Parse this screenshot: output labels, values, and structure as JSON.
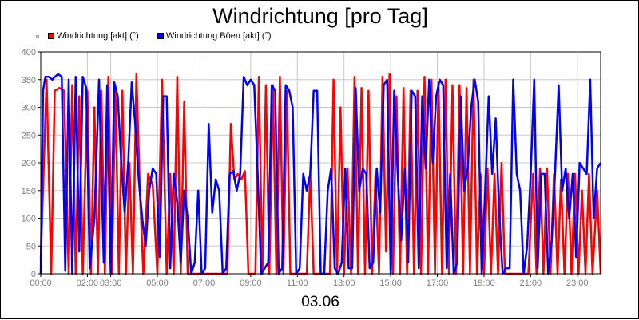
{
  "chart_data": {
    "type": "line",
    "title": "Windrichtung [pro Tag]",
    "xlabel": "03.06",
    "ylabel": "",
    "ylim": [
      0,
      400
    ],
    "yticks": [
      0,
      50,
      100,
      150,
      200,
      250,
      300,
      350,
      400
    ],
    "xlim": [
      0,
      24
    ],
    "xticks": [
      "00:00",
      "02:00",
      "03:00",
      "05:00",
      "07:00",
      "09:00",
      "11:00",
      "13:00",
      "15:00",
      "17:00",
      "19:00",
      "21:00",
      "23:00"
    ],
    "xtick_positions": [
      0,
      2,
      3,
      5,
      7,
      9,
      11,
      13,
      15,
      17,
      19,
      21,
      23
    ],
    "grid": true,
    "legend_position": "top-left",
    "series": [
      {
        "name": "Windrichtung [akt] (°)",
        "color": "#ff0000",
        "points": [
          [
            0.0,
            25
          ],
          [
            0.25,
            350
          ],
          [
            0.45,
            0
          ],
          [
            0.6,
            330
          ],
          [
            0.8,
            335
          ],
          [
            1.0,
            330
          ],
          [
            1.2,
            0
          ],
          [
            1.35,
            340
          ],
          [
            1.5,
            0
          ],
          [
            1.65,
            320
          ],
          [
            1.8,
            0
          ],
          [
            2.0,
            330
          ],
          [
            2.15,
            0
          ],
          [
            2.3,
            300
          ],
          [
            2.45,
            0
          ],
          [
            2.6,
            330
          ],
          [
            2.75,
            0
          ],
          [
            2.9,
            355
          ],
          [
            3.05,
            0
          ],
          [
            3.2,
            330
          ],
          [
            3.35,
            0
          ],
          [
            3.5,
            330
          ],
          [
            3.65,
            0
          ],
          [
            3.8,
            200
          ],
          [
            3.95,
            0
          ],
          [
            4.1,
            360
          ],
          [
            4.25,
            150
          ],
          [
            4.4,
            0
          ],
          [
            4.6,
            180
          ],
          [
            4.8,
            160
          ],
          [
            5.0,
            0
          ],
          [
            5.2,
            350
          ],
          [
            5.4,
            0
          ],
          [
            5.55,
            180
          ],
          [
            5.7,
            0
          ],
          [
            5.85,
            355
          ],
          [
            6.0,
            0
          ],
          [
            6.15,
            310
          ],
          [
            6.3,
            0
          ],
          [
            6.5,
            0
          ],
          [
            6.75,
            0
          ],
          [
            7.0,
            0
          ],
          [
            7.25,
            0
          ],
          [
            7.5,
            0
          ],
          [
            7.8,
            0
          ],
          [
            8.0,
            0
          ],
          [
            8.15,
            270
          ],
          [
            8.3,
            170
          ],
          [
            8.45,
            180
          ],
          [
            8.6,
            170
          ],
          [
            8.75,
            185
          ],
          [
            8.9,
            0
          ],
          [
            9.05,
            0
          ],
          [
            9.2,
            0
          ],
          [
            9.35,
            355
          ],
          [
            9.5,
            0
          ],
          [
            9.65,
            340
          ],
          [
            9.8,
            0
          ],
          [
            9.95,
            340
          ],
          [
            10.1,
            0
          ],
          [
            10.25,
            355
          ],
          [
            10.4,
            0
          ],
          [
            10.55,
            330
          ],
          [
            10.7,
            0
          ],
          [
            10.85,
            0
          ],
          [
            11.0,
            0
          ],
          [
            11.2,
            0
          ],
          [
            11.4,
            0
          ],
          [
            11.55,
            180
          ],
          [
            11.7,
            0
          ],
          [
            11.85,
            0
          ],
          [
            12.0,
            0
          ],
          [
            12.2,
            0
          ],
          [
            12.4,
            0
          ],
          [
            12.55,
            350
          ],
          [
            12.7,
            0
          ],
          [
            12.85,
            300
          ],
          [
            13.0,
            0
          ],
          [
            13.15,
            190
          ],
          [
            13.3,
            0
          ],
          [
            13.45,
            355
          ],
          [
            13.6,
            0
          ],
          [
            13.75,
            335
          ],
          [
            13.9,
            0
          ],
          [
            14.05,
            330
          ],
          [
            14.2,
            0
          ],
          [
            14.35,
            180
          ],
          [
            14.5,
            0
          ],
          [
            14.65,
            355
          ],
          [
            14.8,
            40
          ],
          [
            14.95,
            360
          ],
          [
            15.1,
            0
          ],
          [
            15.25,
            320
          ],
          [
            15.4,
            0
          ],
          [
            15.55,
            335
          ],
          [
            15.7,
            0
          ],
          [
            15.85,
            330
          ],
          [
            16.0,
            0
          ],
          [
            16.15,
            330
          ],
          [
            16.3,
            0
          ],
          [
            16.45,
            355
          ],
          [
            16.6,
            0
          ],
          [
            16.75,
            350
          ],
          [
            16.9,
            0
          ],
          [
            17.05,
            345
          ],
          [
            17.2,
            0
          ],
          [
            17.35,
            350
          ],
          [
            17.5,
            0
          ],
          [
            17.65,
            340
          ],
          [
            17.8,
            0
          ],
          [
            17.95,
            340
          ],
          [
            18.1,
            0
          ],
          [
            18.25,
            335
          ],
          [
            18.4,
            0
          ],
          [
            18.55,
            350
          ],
          [
            18.7,
            0
          ],
          [
            18.85,
            180
          ],
          [
            19.0,
            0
          ],
          [
            19.15,
            190
          ],
          [
            19.3,
            0
          ],
          [
            19.45,
            180
          ],
          [
            19.6,
            0
          ],
          [
            19.75,
            200
          ],
          [
            19.9,
            0
          ],
          [
            20.1,
            0
          ],
          [
            20.3,
            0
          ],
          [
            20.5,
            0
          ],
          [
            20.7,
            0
          ],
          [
            20.9,
            0
          ],
          [
            21.1,
            180
          ],
          [
            21.25,
            0
          ],
          [
            21.4,
            190
          ],
          [
            21.55,
            0
          ],
          [
            21.7,
            190
          ],
          [
            21.85,
            0
          ],
          [
            22.0,
            180
          ],
          [
            22.15,
            0
          ],
          [
            22.3,
            170
          ],
          [
            22.45,
            0
          ],
          [
            22.6,
            180
          ],
          [
            22.75,
            0
          ],
          [
            22.9,
            180
          ],
          [
            23.05,
            0
          ],
          [
            23.2,
            150
          ],
          [
            23.35,
            0
          ],
          [
            23.5,
            180
          ],
          [
            23.65,
            0
          ],
          [
            23.85,
            150
          ],
          [
            24.0,
            0
          ]
        ]
      },
      {
        "name": "Windrichtung Böen [akt] (°)",
        "color": "#0000ff",
        "points": [
          [
            0.0,
            0
          ],
          [
            0.1,
            330
          ],
          [
            0.2,
            355
          ],
          [
            0.35,
            355
          ],
          [
            0.5,
            350
          ],
          [
            0.6,
            355
          ],
          [
            0.75,
            360
          ],
          [
            0.9,
            355
          ],
          [
            1.05,
            5
          ],
          [
            1.2,
            350
          ],
          [
            1.35,
            0
          ],
          [
            1.5,
            355
          ],
          [
            1.65,
            40
          ],
          [
            1.8,
            355
          ],
          [
            1.95,
            335
          ],
          [
            2.1,
            10
          ],
          [
            2.3,
            100
          ],
          [
            2.5,
            350
          ],
          [
            2.7,
            20
          ],
          [
            2.85,
            340
          ],
          [
            3.0,
            0
          ],
          [
            3.15,
            345
          ],
          [
            3.3,
            320
          ],
          [
            3.45,
            200
          ],
          [
            3.6,
            110
          ],
          [
            3.75,
            200
          ],
          [
            3.9,
            345
          ],
          [
            4.05,
            270
          ],
          [
            4.2,
            170
          ],
          [
            4.35,
            100
          ],
          [
            4.5,
            50
          ],
          [
            4.65,
            150
          ],
          [
            4.8,
            190
          ],
          [
            4.95,
            180
          ],
          [
            5.1,
            30
          ],
          [
            5.25,
            320
          ],
          [
            5.4,
            320
          ],
          [
            5.55,
            10
          ],
          [
            5.7,
            180
          ],
          [
            5.85,
            130
          ],
          [
            6.0,
            20
          ],
          [
            6.15,
            150
          ],
          [
            6.3,
            100
          ],
          [
            6.45,
            0
          ],
          [
            6.6,
            20
          ],
          [
            6.75,
            150
          ],
          [
            6.9,
            0
          ],
          [
            7.05,
            10
          ],
          [
            7.2,
            270
          ],
          [
            7.35,
            110
          ],
          [
            7.5,
            170
          ],
          [
            7.65,
            150
          ],
          [
            7.8,
            0
          ],
          [
            7.95,
            10
          ],
          [
            8.1,
            180
          ],
          [
            8.25,
            185
          ],
          [
            8.4,
            150
          ],
          [
            8.55,
            180
          ],
          [
            8.7,
            355
          ],
          [
            8.85,
            340
          ],
          [
            9.0,
            350
          ],
          [
            9.15,
            340
          ],
          [
            9.3,
            180
          ],
          [
            9.45,
            0
          ],
          [
            9.6,
            10
          ],
          [
            9.75,
            20
          ],
          [
            9.9,
            340
          ],
          [
            10.05,
            330
          ],
          [
            10.2,
            0
          ],
          [
            10.35,
            10
          ],
          [
            10.5,
            340
          ],
          [
            10.65,
            330
          ],
          [
            10.8,
            300
          ],
          [
            10.95,
            0
          ],
          [
            11.1,
            10
          ],
          [
            11.25,
            180
          ],
          [
            11.4,
            150
          ],
          [
            11.55,
            180
          ],
          [
            11.7,
            330
          ],
          [
            11.85,
            330
          ],
          [
            12.0,
            0
          ],
          [
            12.15,
            0
          ],
          [
            12.3,
            150
          ],
          [
            12.45,
            190
          ],
          [
            12.6,
            10
          ],
          [
            12.75,
            0
          ],
          [
            12.9,
            20
          ],
          [
            13.05,
            190
          ],
          [
            13.2,
            10
          ],
          [
            13.35,
            10
          ],
          [
            13.5,
            335
          ],
          [
            13.65,
            150
          ],
          [
            13.8,
            190
          ],
          [
            13.95,
            180
          ],
          [
            14.1,
            10
          ],
          [
            14.25,
            20
          ],
          [
            14.4,
            190
          ],
          [
            14.55,
            110
          ],
          [
            14.7,
            340
          ],
          [
            14.85,
            350
          ],
          [
            15.0,
            0
          ],
          [
            15.15,
            330
          ],
          [
            15.3,
            180
          ],
          [
            15.45,
            60
          ],
          [
            15.6,
            190
          ],
          [
            15.75,
            20
          ],
          [
            15.9,
            330
          ],
          [
            16.05,
            320
          ],
          [
            16.2,
            10
          ],
          [
            16.35,
            320
          ],
          [
            16.5,
            190
          ],
          [
            16.65,
            350
          ],
          [
            16.8,
            200
          ],
          [
            16.95,
            320
          ],
          [
            17.1,
            350
          ],
          [
            17.25,
            340
          ],
          [
            17.4,
            10
          ],
          [
            17.55,
            180
          ],
          [
            17.7,
            0
          ],
          [
            17.85,
            20
          ],
          [
            18.0,
            320
          ],
          [
            18.15,
            150
          ],
          [
            18.3,
            190
          ],
          [
            18.45,
            300
          ],
          [
            18.6,
            350
          ],
          [
            18.75,
            310
          ],
          [
            18.9,
            0
          ],
          [
            19.05,
            150
          ],
          [
            19.2,
            320
          ],
          [
            19.35,
            180
          ],
          [
            19.5,
            280
          ],
          [
            19.65,
            110
          ],
          [
            19.8,
            0
          ],
          [
            19.95,
            10
          ],
          [
            20.1,
            10
          ],
          [
            20.25,
            350
          ],
          [
            20.4,
            180
          ],
          [
            20.55,
            150
          ],
          [
            20.7,
            0
          ],
          [
            20.85,
            50
          ],
          [
            21.0,
            180
          ],
          [
            21.15,
            350
          ],
          [
            21.3,
            10
          ],
          [
            21.45,
            180
          ],
          [
            21.6,
            180
          ],
          [
            21.75,
            0
          ],
          [
            21.9,
            60
          ],
          [
            22.05,
            185
          ],
          [
            22.2,
            340
          ],
          [
            22.35,
            150
          ],
          [
            22.5,
            190
          ],
          [
            22.65,
            100
          ],
          [
            22.8,
            180
          ],
          [
            22.95,
            30
          ],
          [
            23.1,
            200
          ],
          [
            23.25,
            190
          ],
          [
            23.4,
            180
          ],
          [
            23.55,
            350
          ],
          [
            23.7,
            100
          ],
          [
            23.85,
            190
          ],
          [
            24.0,
            200
          ]
        ]
      }
    ]
  }
}
